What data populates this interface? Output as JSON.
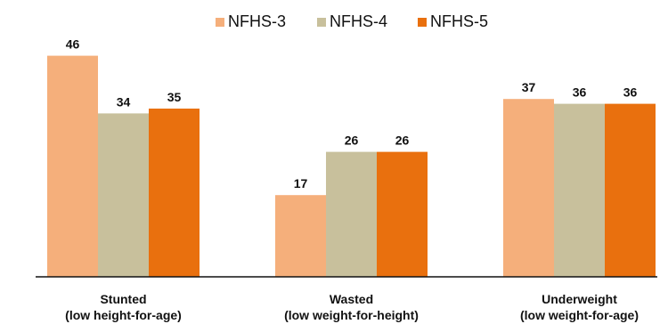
{
  "chart_data": {
    "type": "bar",
    "categories": [
      "Stunted",
      "Wasted",
      "Underweight"
    ],
    "category_sublabels": [
      "(low height-for-age)",
      "(low weight-for-height)",
      "(low weight-for-age)"
    ],
    "series": [
      {
        "name": "NFHS-3",
        "values": [
          46,
          17,
          37
        ],
        "color": "#F5AF7B"
      },
      {
        "name": "NFHS-4",
        "values": [
          34,
          26,
          36
        ],
        "color": "#C8C09C"
      },
      {
        "name": "NFHS-5",
        "values": [
          35,
          26,
          36
        ],
        "color": "#E9700E"
      }
    ],
    "ylim": [
      0,
      50
    ],
    "grid": false,
    "legend": "top-center",
    "data_labels": true
  }
}
